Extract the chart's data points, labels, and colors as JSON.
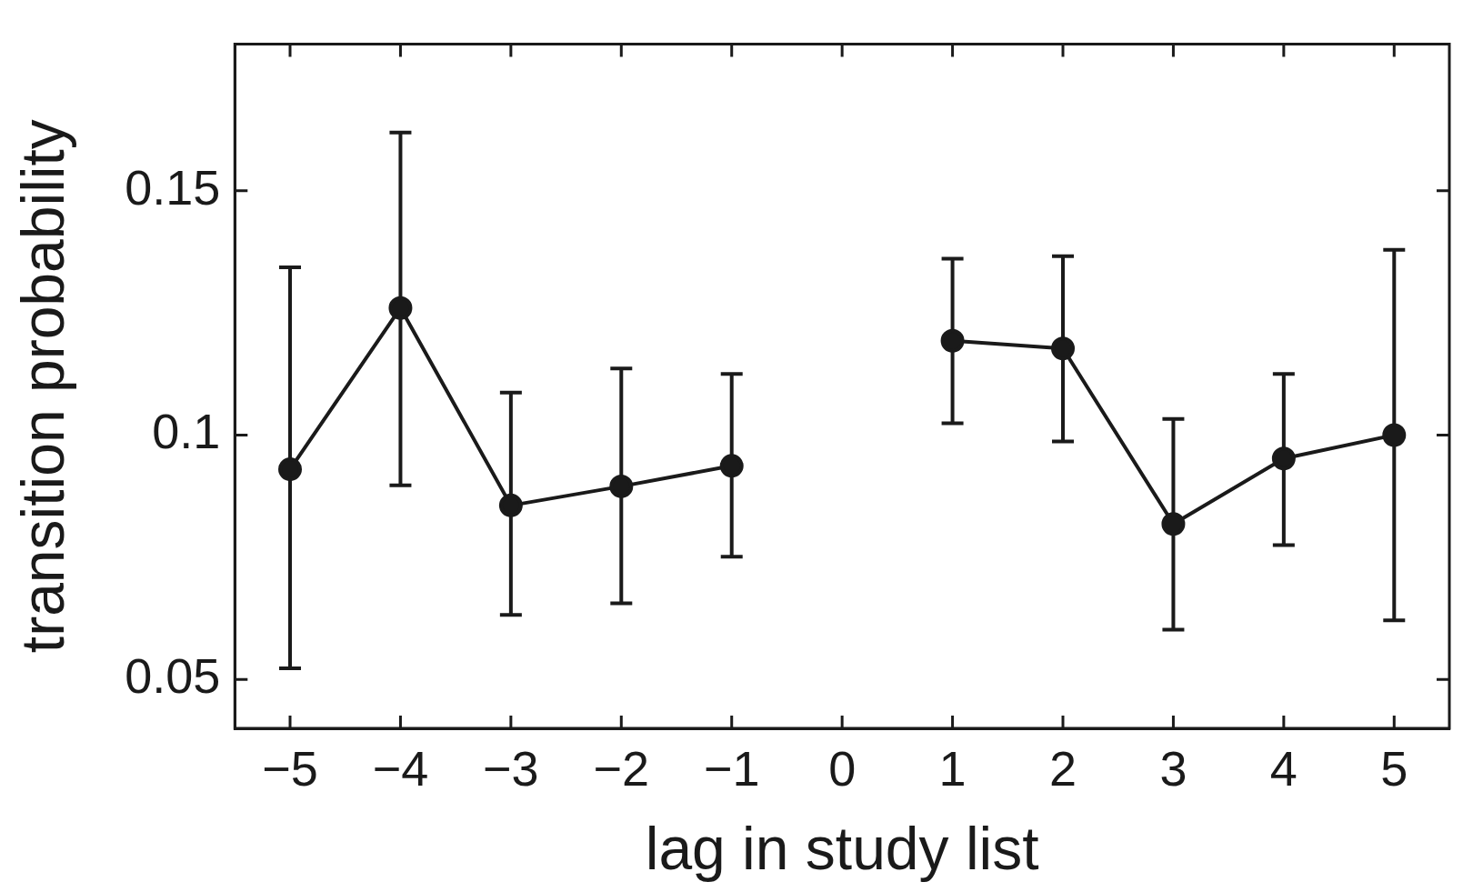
{
  "chart_data": {
    "type": "line",
    "xlabel": "lag in study list",
    "ylabel": "transition probability",
    "x": [
      -5,
      -4,
      -3,
      -2,
      -1,
      0,
      1,
      2,
      3,
      4,
      5
    ],
    "series": [
      {
        "color": "#1a1a1a",
        "values": [
          0.093,
          0.126,
          0.0856,
          0.0895,
          0.0937,
          null,
          0.1193,
          0.1177,
          0.0818,
          0.0952,
          0.1
        ],
        "errors": [
          [
            0.0523,
            0.1343
          ],
          [
            0.0897,
            0.1619
          ],
          [
            0.0632,
            0.1087
          ],
          [
            0.0656,
            0.1136
          ],
          [
            0.0751,
            0.1125
          ],
          null,
          [
            0.1024,
            0.1361
          ],
          [
            0.0987,
            0.1366
          ],
          [
            0.0602,
            0.1033
          ],
          [
            0.0775,
            0.1125
          ],
          [
            0.0621,
            0.1379
          ]
        ]
      }
    ],
    "xlim": [
      -5.5,
      5.5
    ],
    "ylim": [
      0.04,
      0.18
    ],
    "xticks": [
      {
        "value": -5,
        "label": "−5"
      },
      {
        "value": -4,
        "label": "−4"
      },
      {
        "value": -3,
        "label": "−3"
      },
      {
        "value": -2,
        "label": "−2"
      },
      {
        "value": -1,
        "label": "−1"
      },
      0,
      1,
      2,
      3,
      4,
      5
    ],
    "yticks": [
      0.05,
      0.1,
      0.15
    ],
    "grid": false,
    "legend": false,
    "marker": "circle",
    "line_style": "solid"
  }
}
